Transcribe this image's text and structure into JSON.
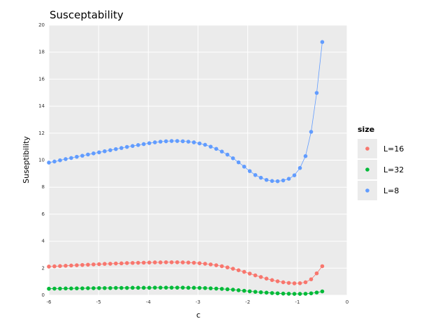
{
  "chart_data": {
    "type": "line",
    "title": "Susceptability",
    "x_label": "c",
    "y_label": "Suseptibility",
    "legend_title": "size",
    "legend": "right",
    "grid": true,
    "x": [
      -6.0,
      -5.888,
      -5.776,
      -5.663,
      -5.551,
      -5.439,
      -5.327,
      -5.214,
      -5.102,
      -4.99,
      -4.878,
      -4.765,
      -4.653,
      -4.541,
      -4.429,
      -4.316,
      -4.204,
      -4.092,
      -3.98,
      -3.867,
      -3.755,
      -3.643,
      -3.531,
      -3.418,
      -3.306,
      -3.194,
      -3.082,
      -2.969,
      -2.857,
      -2.745,
      -2.633,
      -2.52,
      -2.408,
      -2.296,
      -2.184,
      -2.071,
      -1.959,
      -1.847,
      -1.735,
      -1.622,
      -1.51,
      -1.398,
      -1.286,
      -1.173,
      -1.061,
      -0.949,
      -0.837,
      -0.724,
      -0.612,
      -0.5
    ],
    "series": [
      {
        "name": "L=16",
        "color": "#f8766d",
        "values": [
          2.12,
          2.14,
          2.16,
          2.18,
          2.2,
          2.22,
          2.24,
          2.26,
          2.28,
          2.3,
          2.32,
          2.33,
          2.35,
          2.36,
          2.38,
          2.39,
          2.4,
          2.41,
          2.42,
          2.43,
          2.43,
          2.44,
          2.44,
          2.44,
          2.43,
          2.42,
          2.4,
          2.37,
          2.33,
          2.28,
          2.22,
          2.15,
          2.06,
          1.96,
          1.85,
          1.73,
          1.6,
          1.47,
          1.35,
          1.23,
          1.12,
          1.03,
          0.96,
          0.91,
          0.88,
          0.89,
          0.96,
          1.18,
          1.62,
          2.15
        ]
      },
      {
        "name": "L=32",
        "color": "#00ba38",
        "values": [
          0.48,
          0.49,
          0.49,
          0.5,
          0.5,
          0.51,
          0.51,
          0.52,
          0.52,
          0.53,
          0.53,
          0.53,
          0.54,
          0.54,
          0.54,
          0.55,
          0.55,
          0.55,
          0.55,
          0.56,
          0.56,
          0.56,
          0.56,
          0.56,
          0.56,
          0.55,
          0.55,
          0.54,
          0.53,
          0.51,
          0.49,
          0.47,
          0.44,
          0.41,
          0.37,
          0.33,
          0.29,
          0.25,
          0.22,
          0.19,
          0.16,
          0.14,
          0.12,
          0.11,
          0.1,
          0.1,
          0.11,
          0.14,
          0.2,
          0.28
        ]
      },
      {
        "name": "L=8",
        "color": "#619cff",
        "values": [
          9.82,
          9.9,
          9.99,
          10.08,
          10.16,
          10.25,
          10.33,
          10.42,
          10.5,
          10.58,
          10.66,
          10.74,
          10.82,
          10.9,
          10.98,
          11.05,
          11.12,
          11.19,
          11.26,
          11.32,
          11.37,
          11.4,
          11.42,
          11.42,
          11.4,
          11.37,
          11.32,
          11.24,
          11.14,
          11.0,
          10.84,
          10.64,
          10.41,
          10.14,
          9.84,
          9.52,
          9.19,
          8.9,
          8.7,
          8.54,
          8.46,
          8.44,
          8.5,
          8.62,
          8.88,
          9.42,
          10.3,
          12.1,
          14.98,
          18.75
        ]
      }
    ],
    "xlim": [
      -6,
      0
    ],
    "xticks": [
      -6,
      -5,
      -4,
      -3,
      -2,
      -1,
      0
    ],
    "ylim": [
      0,
      20
    ],
    "yticks": [
      0,
      2,
      4,
      6,
      8,
      10,
      12,
      14,
      16,
      18,
      20
    ]
  }
}
